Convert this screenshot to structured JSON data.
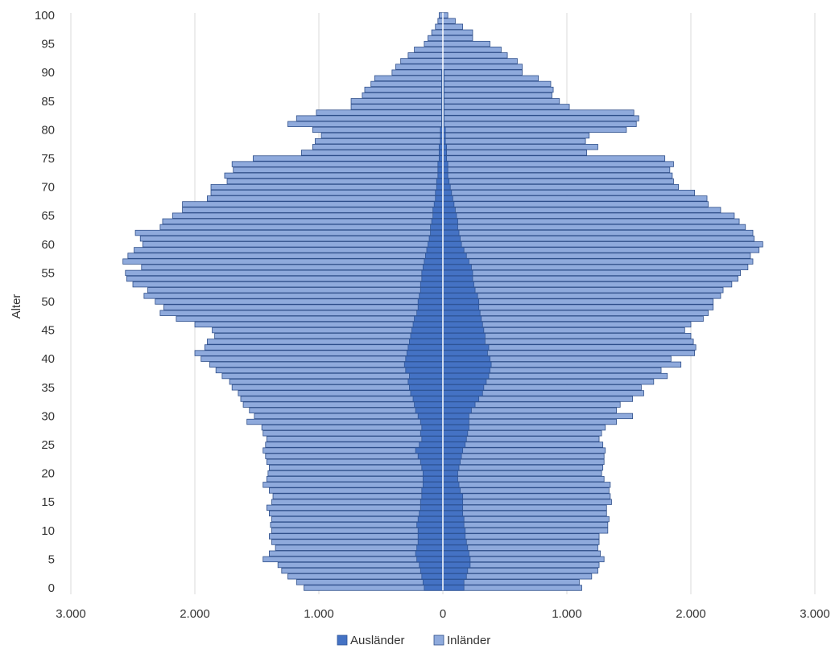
{
  "chart_data": {
    "type": "bar",
    "orientation": "horizontal-pyramid",
    "title": "",
    "xlabel": "",
    "ylabel": "Alter",
    "xlim": [
      -3000,
      3000
    ],
    "ylim": [
      0,
      100
    ],
    "x_ticks": [
      {
        "value": -3000,
        "label": "3.000"
      },
      {
        "value": -2000,
        "label": "2.000"
      },
      {
        "value": -1000,
        "label": "1.000"
      },
      {
        "value": 0,
        "label": "0"
      },
      {
        "value": 1000,
        "label": "1.000"
      },
      {
        "value": 2000,
        "label": "2.000"
      },
      {
        "value": 3000,
        "label": "3.000"
      }
    ],
    "y_ticks": [
      "0",
      "5",
      "10",
      "15",
      "20",
      "25",
      "30",
      "35",
      "40",
      "45",
      "50",
      "55",
      "60",
      "65",
      "70",
      "75",
      "80",
      "85",
      "90",
      "95",
      "100"
    ],
    "grid": "vertical",
    "legend_position": "bottom",
    "legend": [
      {
        "label": "Ausländer",
        "color": "#4472c4"
      },
      {
        "label": "Inländer",
        "color": "#8faadc"
      }
    ],
    "ages": [
      0,
      1,
      2,
      3,
      4,
      5,
      6,
      7,
      8,
      9,
      10,
      11,
      12,
      13,
      14,
      15,
      16,
      17,
      18,
      19,
      20,
      21,
      22,
      23,
      24,
      25,
      26,
      27,
      28,
      29,
      30,
      31,
      32,
      33,
      34,
      35,
      36,
      37,
      38,
      39,
      40,
      41,
      42,
      43,
      44,
      45,
      46,
      47,
      48,
      49,
      50,
      51,
      52,
      53,
      54,
      55,
      56,
      57,
      58,
      59,
      60,
      61,
      62,
      63,
      64,
      65,
      66,
      67,
      68,
      69,
      70,
      71,
      72,
      73,
      74,
      75,
      76,
      77,
      78,
      79,
      80,
      81,
      82,
      83,
      84,
      85,
      86,
      87,
      88,
      89,
      90,
      91,
      92,
      93,
      94,
      95,
      96,
      97,
      98,
      99,
      100
    ],
    "series": [
      {
        "name": "Ausländer",
        "color": "#4472c4",
        "left": [
          150,
          160,
          170,
          180,
          190,
          210,
          220,
          210,
          200,
          200,
          200,
          210,
          200,
          190,
          180,
          180,
          170,
          170,
          160,
          160,
          160,
          170,
          180,
          200,
          220,
          190,
          170,
          180,
          170,
          180,
          200,
          220,
          230,
          240,
          260,
          270,
          280,
          270,
          300,
          310,
          300,
          290,
          280,
          270,
          260,
          250,
          240,
          230,
          210,
          200,
          200,
          190,
          180,
          180,
          170,
          170,
          160,
          150,
          140,
          130,
          120,
          110,
          100,
          100,
          90,
          80,
          80,
          70,
          60,
          60,
          50,
          50,
          40,
          40,
          40,
          30,
          30,
          30,
          20,
          20,
          20,
          10,
          10,
          10,
          10,
          10,
          10,
          10,
          10,
          10,
          10,
          0,
          0,
          0,
          0,
          0,
          0,
          0,
          0,
          0,
          0
        ],
        "right": [
          170,
          170,
          190,
          200,
          220,
          220,
          210,
          200,
          190,
          180,
          180,
          170,
          170,
          160,
          160,
          160,
          160,
          140,
          130,
          120,
          120,
          130,
          140,
          150,
          160,
          180,
          190,
          200,
          210,
          210,
          210,
          230,
          260,
          290,
          320,
          330,
          350,
          370,
          380,
          390,
          380,
          360,
          370,
          340,
          340,
          330,
          320,
          310,
          300,
          290,
          290,
          280,
          260,
          250,
          240,
          240,
          230,
          210,
          190,
          170,
          150,
          140,
          130,
          120,
          120,
          110,
          100,
          90,
          80,
          70,
          60,
          50,
          40,
          40,
          40,
          30,
          30,
          30,
          20,
          20,
          20,
          10,
          10,
          10,
          10,
          10,
          10,
          10,
          10,
          10,
          10,
          0,
          0,
          0,
          0,
          0,
          0,
          0,
          0,
          0,
          0
        ]
      },
      {
        "name": "Inländer",
        "color": "#8faadc",
        "left": [
          1120,
          1180,
          1250,
          1300,
          1330,
          1450,
          1400,
          1350,
          1380,
          1400,
          1380,
          1390,
          1380,
          1400,
          1420,
          1380,
          1370,
          1400,
          1450,
          1420,
          1410,
          1400,
          1420,
          1430,
          1450,
          1430,
          1420,
          1450,
          1460,
          1580,
          1520,
          1560,
          1610,
          1630,
          1650,
          1700,
          1720,
          1780,
          1830,
          1880,
          1950,
          2000,
          1920,
          1900,
          1840,
          1860,
          2000,
          2150,
          2280,
          2250,
          2320,
          2410,
          2380,
          2500,
          2550,
          2560,
          2430,
          2580,
          2540,
          2490,
          2420,
          2440,
          2480,
          2280,
          2260,
          2180,
          2100,
          2100,
          1900,
          1870,
          1870,
          1740,
          1760,
          1690,
          1700,
          1530,
          1140,
          1050,
          1030,
          980,
          1050,
          1250,
          1180,
          1020,
          740,
          740,
          650,
          630,
          580,
          550,
          410,
          380,
          340,
          280,
          230,
          150,
          120,
          90,
          60,
          40,
          30
        ],
        "right": [
          1120,
          1100,
          1200,
          1250,
          1260,
          1300,
          1270,
          1250,
          1260,
          1260,
          1330,
          1330,
          1340,
          1320,
          1320,
          1360,
          1350,
          1340,
          1350,
          1300,
          1280,
          1290,
          1300,
          1300,
          1310,
          1290,
          1260,
          1280,
          1310,
          1400,
          1530,
          1400,
          1430,
          1530,
          1620,
          1600,
          1700,
          1810,
          1760,
          1920,
          1840,
          2030,
          2040,
          2020,
          2000,
          1950,
          2000,
          2100,
          2140,
          2180,
          2180,
          2240,
          2260,
          2330,
          2380,
          2400,
          2460,
          2500,
          2480,
          2550,
          2580,
          2510,
          2500,
          2440,
          2390,
          2350,
          2240,
          2140,
          2130,
          2030,
          1900,
          1860,
          1850,
          1830,
          1860,
          1790,
          1160,
          1250,
          1150,
          1180,
          1480,
          1560,
          1580,
          1540,
          1020,
          940,
          880,
          890,
          870,
          770,
          640,
          640,
          600,
          520,
          470,
          380,
          240,
          240,
          160,
          100,
          40
        ]
      }
    ]
  }
}
